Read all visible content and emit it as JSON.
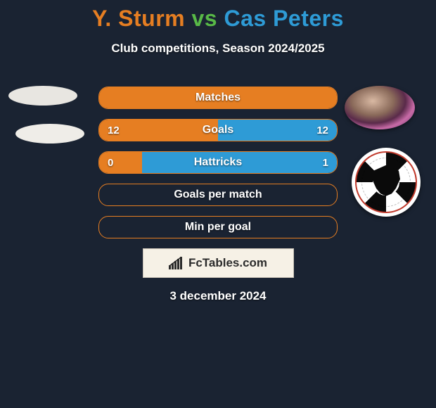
{
  "colors": {
    "background": "#1a2332",
    "player1": "#e67e22",
    "player2": "#2e9bd6",
    "vs": "#58b947",
    "white": "#ffffff",
    "brand_bg": "#f6f1e6",
    "brand_border": "#c9c2b6",
    "brand_text": "#2b2b2b"
  },
  "title": {
    "player1": "Y. Sturm",
    "vs": "vs",
    "player2": "Cas Peters"
  },
  "subtitle": "Club competitions, Season 2024/2025",
  "stats": [
    {
      "label": "Matches",
      "left_val": "",
      "right_val": "",
      "left_pct": 100,
      "right_pct": 0
    },
    {
      "label": "Goals",
      "left_val": "12",
      "right_val": "12",
      "left_pct": 50,
      "right_pct": 50
    },
    {
      "label": "Hattricks",
      "left_val": "0",
      "right_val": "1",
      "left_pct": 18,
      "right_pct": 82
    },
    {
      "label": "Goals per match",
      "left_val": "",
      "right_val": "",
      "left_pct": 0,
      "right_pct": 0
    },
    {
      "label": "Min per goal",
      "left_val": "",
      "right_val": "",
      "left_pct": 0,
      "right_pct": 0
    }
  ],
  "brand": "FcTables.com",
  "date": "3 december 2024"
}
